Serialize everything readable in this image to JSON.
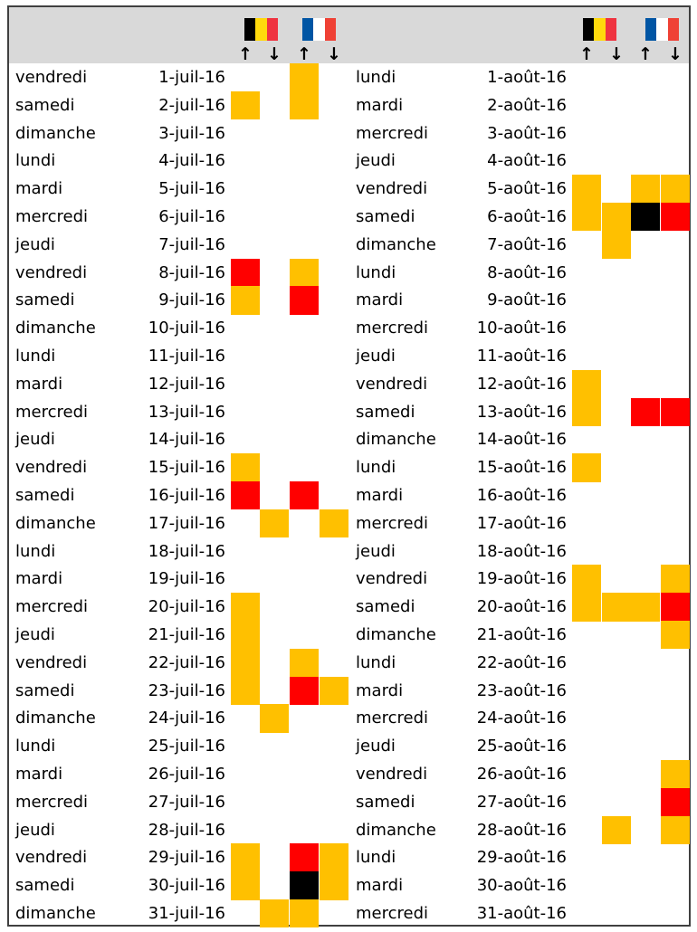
{
  "colors": {
    "yellow": "#ffc000",
    "red": "#ff0000",
    "black": "#000000"
  },
  "header": {
    "flags": [
      {
        "icon": "belgium-flag-icon",
        "colors": [
          "#000000",
          "#ffd90c",
          "#ef3340"
        ]
      },
      {
        "icon": "france-flag-icon",
        "colors": [
          "#0055a4",
          "#ffffff",
          "#ef4135"
        ]
      },
      {
        "icon": "belgium-flag-icon",
        "colors": [
          "#000000",
          "#ffd90c",
          "#ef3340"
        ]
      },
      {
        "icon": "france-flag-icon",
        "colors": [
          "#0055a4",
          "#ffffff",
          "#ef4135"
        ]
      }
    ],
    "arrow_up": "↑",
    "arrow_down": "↓"
  },
  "july": [
    {
      "day": "vendredi",
      "date": "1-juil-16",
      "cells": [
        "",
        "",
        "y",
        ""
      ]
    },
    {
      "day": "samedi",
      "date": "2-juil-16",
      "cells": [
        "y",
        "",
        "y",
        ""
      ]
    },
    {
      "day": "dimanche",
      "date": "3-juil-16",
      "cells": [
        "",
        "",
        "",
        ""
      ]
    },
    {
      "day": "lundi",
      "date": "4-juil-16",
      "cells": [
        "",
        "",
        "",
        ""
      ]
    },
    {
      "day": "mardi",
      "date": "5-juil-16",
      "cells": [
        "",
        "",
        "",
        ""
      ]
    },
    {
      "day": "mercredi",
      "date": "6-juil-16",
      "cells": [
        "",
        "",
        "",
        ""
      ]
    },
    {
      "day": "jeudi",
      "date": "7-juil-16",
      "cells": [
        "",
        "",
        "",
        ""
      ]
    },
    {
      "day": "vendredi",
      "date": "8-juil-16",
      "cells": [
        "r",
        "",
        "y",
        ""
      ]
    },
    {
      "day": "samedi",
      "date": "9-juil-16",
      "cells": [
        "y",
        "",
        "r",
        ""
      ]
    },
    {
      "day": "dimanche",
      "date": "10-juil-16",
      "cells": [
        "",
        "",
        "",
        ""
      ]
    },
    {
      "day": "lundi",
      "date": "11-juil-16",
      "cells": [
        "",
        "",
        "",
        ""
      ]
    },
    {
      "day": "mardi",
      "date": "12-juil-16",
      "cells": [
        "",
        "",
        "",
        ""
      ]
    },
    {
      "day": "mercredi",
      "date": "13-juil-16",
      "cells": [
        "",
        "",
        "",
        ""
      ]
    },
    {
      "day": "jeudi",
      "date": "14-juil-16",
      "cells": [
        "",
        "",
        "",
        ""
      ]
    },
    {
      "day": "vendredi",
      "date": "15-juil-16",
      "cells": [
        "y",
        "",
        "",
        ""
      ]
    },
    {
      "day": "samedi",
      "date": "16-juil-16",
      "cells": [
        "r",
        "",
        "r",
        ""
      ]
    },
    {
      "day": "dimanche",
      "date": "17-juil-16",
      "cells": [
        "",
        "y",
        "",
        "y"
      ]
    },
    {
      "day": "lundi",
      "date": "18-juil-16",
      "cells": [
        "",
        "",
        "",
        ""
      ]
    },
    {
      "day": "mardi",
      "date": "19-juil-16",
      "cells": [
        "",
        "",
        "",
        ""
      ]
    },
    {
      "day": "mercredi",
      "date": "20-juil-16",
      "cells": [
        "y",
        "",
        "",
        ""
      ]
    },
    {
      "day": "jeudi",
      "date": "21-juil-16",
      "cells": [
        "y",
        "",
        "",
        ""
      ]
    },
    {
      "day": "vendredi",
      "date": "22-juil-16",
      "cells": [
        "y",
        "",
        "y",
        ""
      ]
    },
    {
      "day": "samedi",
      "date": "23-juil-16",
      "cells": [
        "y",
        "",
        "r",
        "y"
      ]
    },
    {
      "day": "dimanche",
      "date": "24-juil-16",
      "cells": [
        "",
        "y",
        "",
        ""
      ]
    },
    {
      "day": "lundi",
      "date": "25-juil-16",
      "cells": [
        "",
        "",
        "",
        ""
      ]
    },
    {
      "day": "mardi",
      "date": "26-juil-16",
      "cells": [
        "",
        "",
        "",
        ""
      ]
    },
    {
      "day": "mercredi",
      "date": "27-juil-16",
      "cells": [
        "",
        "",
        "",
        ""
      ]
    },
    {
      "day": "jeudi",
      "date": "28-juil-16",
      "cells": [
        "",
        "",
        "",
        ""
      ]
    },
    {
      "day": "vendredi",
      "date": "29-juil-16",
      "cells": [
        "y",
        "",
        "r",
        "y"
      ]
    },
    {
      "day": "samedi",
      "date": "30-juil-16",
      "cells": [
        "y",
        "",
        "b",
        "y"
      ]
    },
    {
      "day": "dimanche",
      "date": "31-juil-16",
      "cells": [
        "",
        "y",
        "y",
        ""
      ]
    }
  ],
  "august": [
    {
      "day": "lundi",
      "date": "1-août-16",
      "cells": [
        "",
        "",
        "",
        ""
      ]
    },
    {
      "day": "mardi",
      "date": "2-août-16",
      "cells": [
        "",
        "",
        "",
        ""
      ]
    },
    {
      "day": "mercredi",
      "date": "3-août-16",
      "cells": [
        "",
        "",
        "",
        ""
      ]
    },
    {
      "day": "jeudi",
      "date": "4-août-16",
      "cells": [
        "",
        "",
        "",
        ""
      ]
    },
    {
      "day": "vendredi",
      "date": "5-août-16",
      "cells": [
        "y",
        "",
        "y",
        "y"
      ]
    },
    {
      "day": "samedi",
      "date": "6-août-16",
      "cells": [
        "y",
        "y",
        "b",
        "r"
      ]
    },
    {
      "day": "dimanche",
      "date": "7-août-16",
      "cells": [
        "",
        "y",
        "",
        ""
      ]
    },
    {
      "day": "lundi",
      "date": "8-août-16",
      "cells": [
        "",
        "",
        "",
        ""
      ]
    },
    {
      "day": "mardi",
      "date": "9-août-16",
      "cells": [
        "",
        "",
        "",
        ""
      ]
    },
    {
      "day": "mercredi",
      "date": "10-août-16",
      "cells": [
        "",
        "",
        "",
        ""
      ]
    },
    {
      "day": "jeudi",
      "date": "11-août-16",
      "cells": [
        "",
        "",
        "",
        ""
      ]
    },
    {
      "day": "vendredi",
      "date": "12-août-16",
      "cells": [
        "y",
        "",
        "",
        ""
      ]
    },
    {
      "day": "samedi",
      "date": "13-août-16",
      "cells": [
        "y",
        "",
        "r",
        "r"
      ]
    },
    {
      "day": "dimanche",
      "date": "14-août-16",
      "cells": [
        "",
        "",
        "",
        ""
      ]
    },
    {
      "day": "lundi",
      "date": "15-août-16",
      "cells": [
        "y",
        "",
        "",
        ""
      ]
    },
    {
      "day": "mardi",
      "date": "16-août-16",
      "cells": [
        "",
        "",
        "",
        ""
      ]
    },
    {
      "day": "mercredi",
      "date": "17-août-16",
      "cells": [
        "",
        "",
        "",
        ""
      ]
    },
    {
      "day": "jeudi",
      "date": "18-août-16",
      "cells": [
        "",
        "",
        "",
        ""
      ]
    },
    {
      "day": "vendredi",
      "date": "19-août-16",
      "cells": [
        "y",
        "",
        "",
        "y"
      ]
    },
    {
      "day": "samedi",
      "date": "20-août-16",
      "cells": [
        "y",
        "y",
        "y",
        "r"
      ]
    },
    {
      "day": "dimanche",
      "date": "21-août-16",
      "cells": [
        "",
        "",
        "",
        "y"
      ]
    },
    {
      "day": "lundi",
      "date": "22-août-16",
      "cells": [
        "",
        "",
        "",
        ""
      ]
    },
    {
      "day": "mardi",
      "date": "23-août-16",
      "cells": [
        "",
        "",
        "",
        ""
      ]
    },
    {
      "day": "mercredi",
      "date": "24-août-16",
      "cells": [
        "",
        "",
        "",
        ""
      ]
    },
    {
      "day": "jeudi",
      "date": "25-août-16",
      "cells": [
        "",
        "",
        "",
        ""
      ]
    },
    {
      "day": "vendredi",
      "date": "26-août-16",
      "cells": [
        "",
        "",
        "",
        "y"
      ]
    },
    {
      "day": "samedi",
      "date": "27-août-16",
      "cells": [
        "",
        "",
        "",
        "r"
      ]
    },
    {
      "day": "dimanche",
      "date": "28-août-16",
      "cells": [
        "",
        "y",
        "",
        "y"
      ]
    },
    {
      "day": "lundi",
      "date": "29-août-16",
      "cells": [
        "",
        "",
        "",
        ""
      ]
    },
    {
      "day": "mardi",
      "date": "30-août-16",
      "cells": [
        "",
        "",
        "",
        ""
      ]
    },
    {
      "day": "mercredi",
      "date": "31-août-16",
      "cells": [
        "",
        "",
        "",
        ""
      ]
    }
  ]
}
